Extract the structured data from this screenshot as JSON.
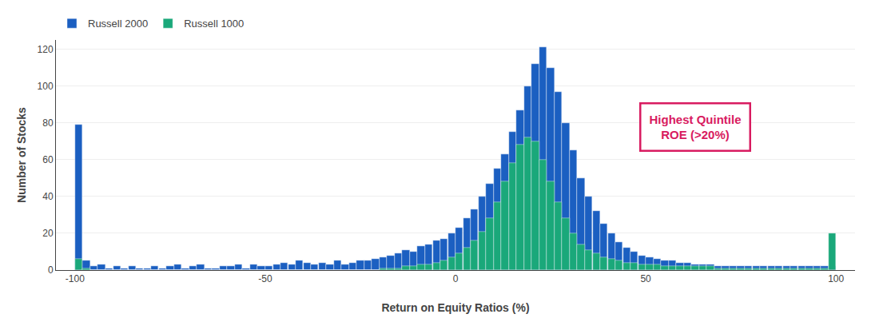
{
  "chart_data": {
    "type": "histogram",
    "xlabel": "Return on Equity Ratios (%)",
    "ylabel": "Number of Stocks",
    "bins": [
      -100,
      -98,
      -96,
      -94,
      -92,
      -90,
      -88,
      -86,
      -84,
      -82,
      -80,
      -78,
      -76,
      -74,
      -72,
      -70,
      -68,
      -66,
      -64,
      -62,
      -60,
      -58,
      -56,
      -54,
      -52,
      -50,
      -48,
      -46,
      -44,
      -42,
      -40,
      -38,
      -36,
      -34,
      -32,
      -30,
      -28,
      -26,
      -24,
      -22,
      -20,
      -18,
      -16,
      -14,
      -12,
      -10,
      -8,
      -6,
      -4,
      -2,
      0,
      2,
      4,
      6,
      8,
      10,
      12,
      14,
      16,
      18,
      20,
      22,
      24,
      26,
      28,
      30,
      32,
      34,
      36,
      38,
      40,
      42,
      44,
      46,
      48,
      50,
      52,
      54,
      56,
      58,
      60,
      62,
      64,
      66,
      68,
      70,
      72,
      74,
      76,
      78,
      80,
      82,
      84,
      86,
      88,
      90,
      92,
      94,
      96,
      98,
      100
    ],
    "series": [
      {
        "name": "Russell 2000",
        "color": "#1B5FC1",
        "values": [
          79,
          5,
          2,
          3,
          1,
          2,
          1,
          2,
          1,
          1,
          2,
          1,
          2,
          3,
          1,
          2,
          3,
          1,
          1,
          2,
          2,
          3,
          1,
          3,
          2,
          2,
          3,
          4,
          3,
          5,
          4,
          3,
          4,
          3,
          5,
          3,
          4,
          5,
          5,
          6,
          7,
          8,
          9,
          11,
          10,
          13,
          14,
          16,
          17,
          20,
          23,
          28,
          33,
          40,
          47,
          55,
          63,
          75,
          87,
          100,
          112,
          121,
          110,
          97,
          80,
          65,
          50,
          40,
          32,
          25,
          20,
          15,
          12,
          10,
          8,
          7,
          6,
          5,
          5,
          4,
          4,
          3,
          3,
          3,
          2,
          2,
          2,
          2,
          2,
          2,
          2,
          2,
          2,
          2,
          2,
          2,
          2,
          2,
          2,
          2
        ]
      },
      {
        "name": "Russell 1000",
        "color": "#1AA87A",
        "values": [
          6,
          1,
          0,
          0,
          0,
          0,
          0,
          0,
          0,
          0,
          0,
          0,
          0,
          0,
          0,
          0,
          0,
          0,
          0,
          0,
          0,
          0,
          0,
          0,
          0,
          0,
          0,
          0,
          0,
          0,
          0,
          0,
          0,
          0,
          0,
          0,
          0,
          0,
          0,
          0,
          1,
          1,
          1,
          2,
          2,
          3,
          3,
          4,
          5,
          7,
          9,
          12,
          16,
          21,
          28,
          37,
          48,
          58,
          68,
          72,
          70,
          60,
          48,
          37,
          28,
          20,
          14,
          11,
          9,
          7,
          6,
          5,
          4,
          4,
          3,
          3,
          3,
          2,
          2,
          2,
          2,
          2,
          2,
          2,
          1,
          1,
          1,
          1,
          1,
          1,
          1,
          1,
          1,
          1,
          1,
          1,
          1,
          1,
          1,
          20
        ]
      }
    ],
    "xlim": [
      -105,
      105
    ],
    "ylim": [
      0,
      125
    ],
    "xticks": [
      -100,
      -50,
      0,
      50,
      100
    ],
    "yticks": [
      0,
      20,
      40,
      60,
      80,
      100,
      120
    ],
    "grid": true,
    "legend": "upper left",
    "annotations": [
      {
        "text": "Highest Quintile\nROE (>20%)",
        "color": "#D81B60"
      }
    ]
  }
}
